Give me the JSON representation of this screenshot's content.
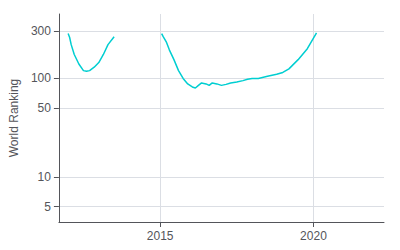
{
  "chart_data": {
    "type": "line",
    "ylabel": "World Ranking",
    "log": "y",
    "grid": true,
    "color": "#00CED1",
    "xlim": [
      2011.7,
      2022.3
    ],
    "xticks": [
      2015,
      2020
    ],
    "ylim": [
      3.5,
      450
    ],
    "yticks": [
      5,
      10,
      50,
      100,
      300
    ],
    "series": [
      {
        "x": [
          2012.0,
          2012.05,
          2012.1,
          2012.2,
          2012.35,
          2012.5,
          2012.6,
          2012.7,
          2012.85,
          2013.0,
          2013.15,
          2013.3,
          2013.5
        ],
        "values": [
          285,
          260,
          220,
          175,
          140,
          120,
          118,
          120,
          130,
          145,
          175,
          220,
          265
        ]
      },
      {
        "x": [
          2015.05,
          2015.1,
          2015.2,
          2015.3,
          2015.45,
          2015.6,
          2015.75,
          2015.9,
          2016.05,
          2016.15,
          2016.25,
          2016.35,
          2016.5,
          2016.6,
          2016.7,
          2016.85,
          2017.0,
          2017.15,
          2017.3,
          2017.5,
          2017.7,
          2017.85,
          2018.0,
          2018.2,
          2018.5,
          2018.8,
          2019.0,
          2019.2,
          2019.5,
          2019.8,
          2020.1
        ],
        "values": [
          285,
          265,
          235,
          195,
          155,
          120,
          100,
          88,
          82,
          80,
          85,
          90,
          88,
          85,
          90,
          88,
          85,
          87,
          90,
          92,
          95,
          98,
          100,
          100,
          105,
          110,
          115,
          125,
          155,
          200,
          290
        ]
      }
    ]
  }
}
